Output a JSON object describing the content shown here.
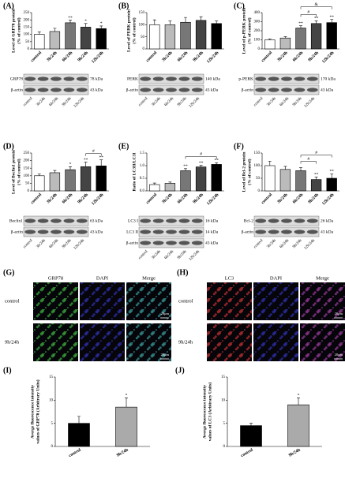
{
  "chart_data": [
    {
      "type": "bar",
      "panel": "(A)",
      "ylabel": [
        "Level of GRP78 protein",
        "(% of control)"
      ],
      "categories": [
        "control",
        "3h/24h",
        "6h/24h",
        "9h/24h",
        "12h/24h"
      ],
      "values": [
        100,
        120,
        180,
        150,
        140
      ],
      "errors": [
        18,
        22,
        18,
        25,
        18
      ],
      "colors": [
        "#ffffff",
        "#bbbbbb",
        "#777777",
        "#444444",
        "#000000"
      ],
      "significance": [
        null,
        null,
        "**",
        "*",
        "*"
      ],
      "ylim": [
        0,
        250
      ],
      "yticks": [
        0,
        50,
        100,
        150,
        200,
        250
      ],
      "blot": [
        {
          "protein": "GRP78",
          "kda": "78 kDa"
        },
        {
          "protein": "β-actin",
          "kda": "43 kDa"
        }
      ]
    },
    {
      "type": "bar",
      "panel": "(B)",
      "ylabel": [
        "Level of PERK protein",
        "(% of control)"
      ],
      "categories": [
        "control",
        "3h/24h",
        "6h/24h",
        "9h/24h",
        "12h/24h"
      ],
      "values": [
        100,
        100,
        110,
        118,
        105
      ],
      "errors": [
        20,
        15,
        20,
        15,
        10
      ],
      "colors": [
        "#ffffff",
        "#bbbbbb",
        "#777777",
        "#444444",
        "#000000"
      ],
      "significance": [
        null,
        null,
        null,
        null,
        null
      ],
      "ylim": [
        0,
        150
      ],
      "yticks": [
        0,
        50,
        100,
        150
      ],
      "blot": [
        {
          "protein": "PERK",
          "kda": "140 kDa"
        },
        {
          "protein": "β-actin",
          "kda": "43 kDa"
        }
      ]
    },
    {
      "type": "bar",
      "panel": "(C)",
      "ylabel": [
        "Level of p-PERK protein",
        "(% of control)"
      ],
      "categories": [
        "control",
        "3h/24h",
        "6h/24h",
        "9h/24h",
        "12h/24h"
      ],
      "values": [
        100,
        120,
        230,
        280,
        290
      ],
      "errors": [
        12,
        15,
        25,
        30,
        35
      ],
      "colors": [
        "#ffffff",
        "#bbbbbb",
        "#777777",
        "#444444",
        "#000000"
      ],
      "significance": [
        null,
        null,
        "**",
        "**",
        "**"
      ],
      "brackets": [
        {
          "from": "6h/24h",
          "to": "9h/24h",
          "label": "#"
        },
        {
          "from": "6h/24h",
          "to": "12h/24h",
          "label": "&"
        }
      ],
      "ylim": [
        0,
        400
      ],
      "yticks": [
        0,
        100,
        200,
        300,
        400
      ],
      "blot": [
        {
          "protein": "p-PERK",
          "kda": "170 kDa"
        },
        {
          "protein": "β-actin",
          "kda": "43 kDa"
        }
      ]
    },
    {
      "type": "bar",
      "panel": "(D)",
      "ylabel": [
        "Level of Beclin1 protein",
        "(% of control)"
      ],
      "categories": [
        "control",
        "3h/24h",
        "6h/24h",
        "9h/24h",
        "12h/24h"
      ],
      "values": [
        100,
        120,
        140,
        160,
        165
      ],
      "errors": [
        12,
        15,
        20,
        30,
        40
      ],
      "colors": [
        "#ffffff",
        "#bbbbbb",
        "#777777",
        "#444444",
        "#000000"
      ],
      "significance": [
        null,
        null,
        "*",
        "**",
        "**"
      ],
      "brackets": [
        {
          "from": "9h/24h",
          "to": "12h/24h",
          "label": "#"
        }
      ],
      "ylim": [
        0,
        250
      ],
      "yticks": [
        0,
        50,
        100,
        150,
        200,
        250
      ],
      "blot": [
        {
          "protein": "Beclin1",
          "kda": "63 kDa"
        },
        {
          "protein": "β-actin",
          "kda": "43 kDa"
        }
      ]
    },
    {
      "type": "bar",
      "panel": "(E)",
      "ylabel": [
        "Ratio of LC3II/LC3I"
      ],
      "categories": [
        "control",
        "3h/24h",
        "6h/24h",
        "9h/24h",
        "12h/24h"
      ],
      "values": [
        0.25,
        0.3,
        0.8,
        0.95,
        1.05
      ],
      "errors": [
        0.06,
        0.05,
        0.08,
        0.06,
        0.06
      ],
      "colors": [
        "#ffffff",
        "#bbbbbb",
        "#777777",
        "#444444",
        "#000000"
      ],
      "significance": [
        null,
        null,
        "**",
        "**",
        "**"
      ],
      "brackets": [
        {
          "from": "6h/24h",
          "to": "12h/24h",
          "label": "#"
        }
      ],
      "ylim": [
        0,
        1.5
      ],
      "yticks": [
        {
          "value": 0,
          "label": "0.0"
        },
        {
          "value": 0.5,
          "label": "0.5"
        },
        {
          "value": 1,
          "label": "1.0"
        },
        {
          "value": 1.5,
          "label": "1.5"
        }
      ],
      "blot": [
        {
          "protein": "LC3 I",
          "kda": "16 kDa"
        },
        {
          "protein": "LC3 II",
          "kda": "14 kDa"
        },
        {
          "protein": "β-actin",
          "kda": "43 kDa"
        }
      ]
    },
    {
      "type": "bar",
      "panel": "(F)",
      "ylabel": [
        "Level of Bcl-2 protein",
        "(% of control)"
      ],
      "categories": [
        "control",
        "3h/24h",
        "6h/24h",
        "9h/24h",
        "12h/24h"
      ],
      "values": [
        100,
        85,
        80,
        45,
        50
      ],
      "errors": [
        18,
        12,
        12,
        10,
        18
      ],
      "colors": [
        "#ffffff",
        "#bbbbbb",
        "#777777",
        "#444444",
        "#000000"
      ],
      "significance": [
        null,
        null,
        null,
        "**",
        "**"
      ],
      "brackets": [
        {
          "from": "6h/24h",
          "to": "9h/24h",
          "label": "#"
        },
        {
          "from": "6h/24h",
          "to": "12h/24h",
          "label": "#"
        }
      ],
      "ylim": [
        0,
        150
      ],
      "yticks": [
        0,
        50,
        100,
        150
      ],
      "blot": [
        {
          "protein": "Bcl-2",
          "kda": "26 kDa"
        },
        {
          "protein": "β-actin",
          "kda": "43 kDa"
        }
      ]
    },
    {
      "type": "bar",
      "panel": "(I)",
      "ylabel": [
        "Averge fluorescence intensity",
        "values of GRP78 (Arbitrary Units)"
      ],
      "categories": [
        "control",
        "9h/24h"
      ],
      "values": [
        5,
        8.5
      ],
      "errors": [
        1.5,
        2
      ],
      "colors": [
        "#000000",
        "#aaaaaa"
      ],
      "significance": [
        null,
        "*"
      ],
      "ylim": [
        0,
        15
      ],
      "yticks": [
        0,
        5,
        10,
        15
      ]
    },
    {
      "type": "bar",
      "panel": "(J)",
      "ylabel": [
        "Averge fluorescence intensity",
        "values of LC3 (Arbitrary Units)"
      ],
      "categories": [
        "control",
        "9h/24h"
      ],
      "values": [
        4.5,
        9
      ],
      "errors": [
        0.5,
        1.5
      ],
      "colors": [
        "#000000",
        "#aaaaaa"
      ],
      "significance": [
        null,
        "*"
      ],
      "ylim": [
        0,
        15
      ],
      "yticks": [
        0,
        5,
        10,
        15
      ]
    }
  ],
  "images": [
    {
      "panel": "(G)",
      "columns": [
        "GRP78",
        "DAPI",
        "Merge"
      ],
      "rows": [
        "control",
        "9h/24h"
      ],
      "scale": "20μm",
      "colors": [
        "#3fae3f",
        "#3030b0",
        "#3a9a9a"
      ]
    },
    {
      "panel": "(H)",
      "columns": [
        "LC3",
        "DAPI",
        "Merge"
      ],
      "rows": [
        "control",
        "9h/24h"
      ],
      "scale": "20μm",
      "colors": [
        "#c03030",
        "#3030b0",
        "#9a3a9a"
      ]
    }
  ]
}
